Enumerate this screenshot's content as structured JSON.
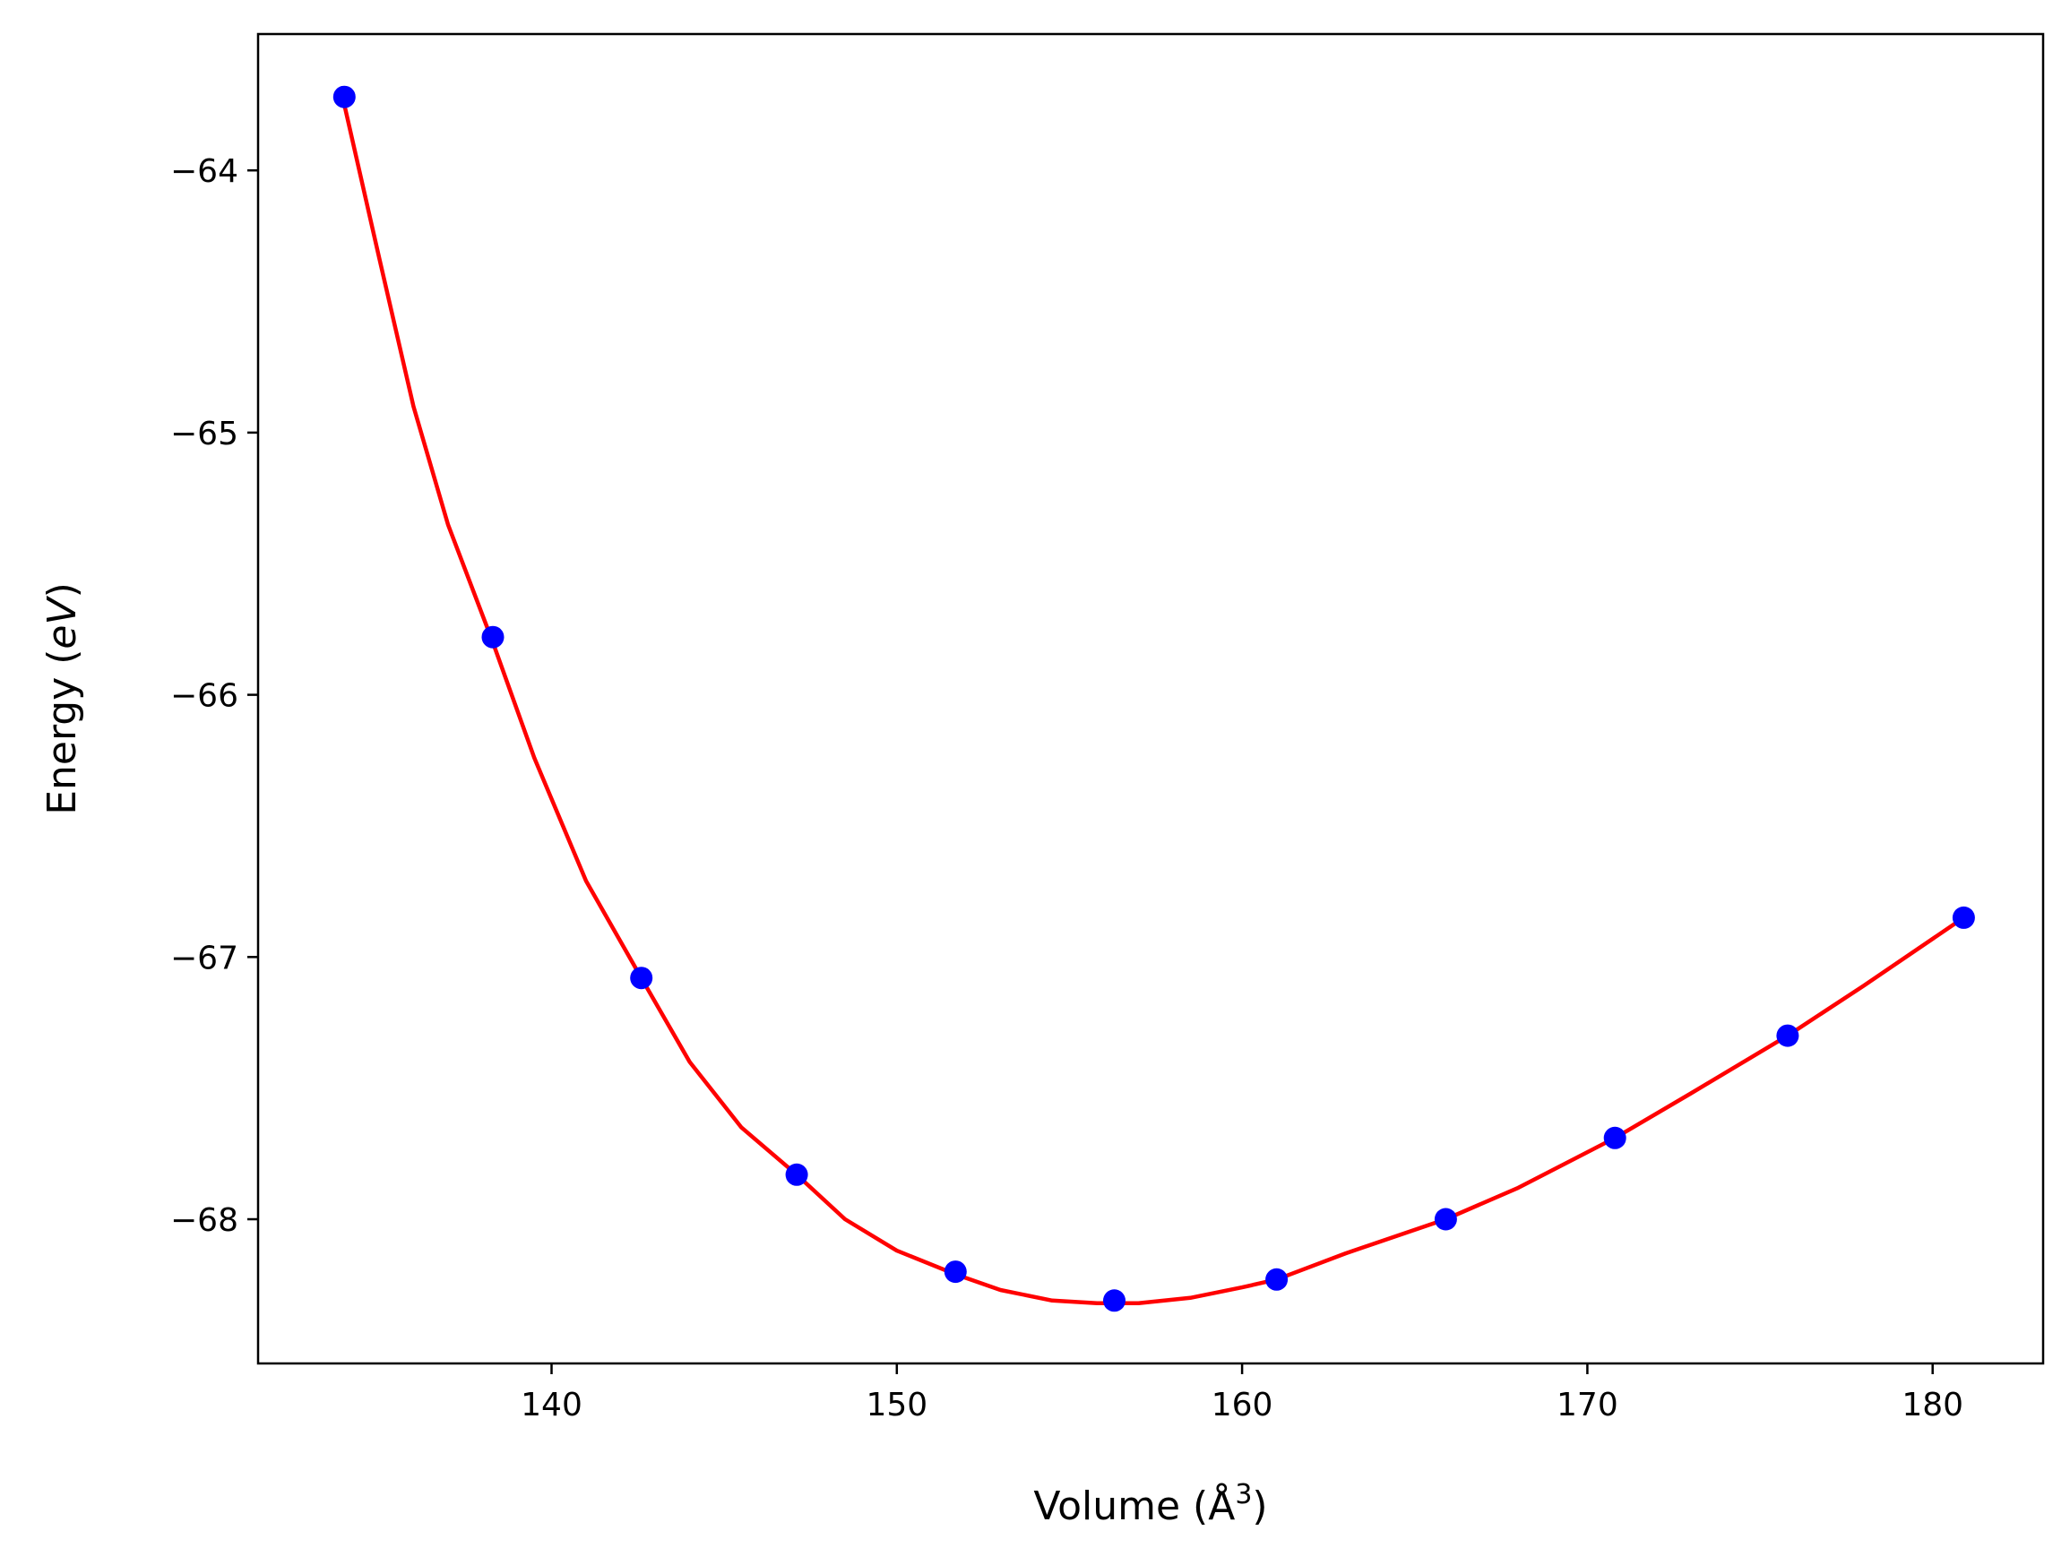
{
  "chart_data": {
    "type": "scatter",
    "title": "",
    "xlabel": "Volume (Å",
    "xlabel_superscript": "3",
    "xlabel_close": ")",
    "ylabel_prefix": "Energy (",
    "ylabel_italic": "eV",
    "ylabel_suffix": ")",
    "xlim": [
      131.5,
      183.2
    ],
    "ylim": [
      -68.55,
      -63.48
    ],
    "xticks": [
      140,
      150,
      160,
      170,
      180
    ],
    "yticks": [
      -68,
      -67,
      -66,
      -65,
      -64
    ],
    "xtick_labels": [
      "140",
      "150",
      "160",
      "170",
      "180"
    ],
    "ytick_labels": [
      "−68",
      "−67",
      "−66",
      "−65",
      "−64"
    ],
    "grid": false,
    "series": [
      {
        "kind": "points",
        "color": "#0000ff",
        "x": [
          134.0,
          138.3,
          142.6,
          147.1,
          151.7,
          156.3,
          161.0,
          165.9,
          170.8,
          175.8,
          180.9
        ],
        "y": [
          -63.72,
          -65.78,
          -67.08,
          -67.83,
          -68.2,
          -68.31,
          -68.23,
          -68.0,
          -67.69,
          -67.3,
          -66.85
        ]
      },
      {
        "kind": "fit-line",
        "color": "#ff0000",
        "x": [
          134.0,
          135.0,
          136.0,
          137.0,
          138.3,
          139.5,
          141.0,
          142.6,
          144.0,
          145.5,
          147.1,
          148.5,
          150.0,
          151.7,
          153.0,
          154.5,
          155.8,
          157.0,
          158.5,
          160.0,
          161.0,
          163.0,
          165.9,
          168.0,
          170.8,
          173.0,
          175.8,
          178.0,
          180.9
        ],
        "y": [
          -63.75,
          -64.33,
          -64.9,
          -65.35,
          -65.8,
          -66.24,
          -66.71,
          -67.08,
          -67.4,
          -67.65,
          -67.83,
          -68.0,
          -68.12,
          -68.21,
          -68.27,
          -68.31,
          -68.32,
          -68.32,
          -68.3,
          -68.26,
          -68.23,
          -68.13,
          -68.0,
          -67.88,
          -67.69,
          -67.52,
          -67.3,
          -67.11,
          -66.85
        ]
      }
    ]
  }
}
